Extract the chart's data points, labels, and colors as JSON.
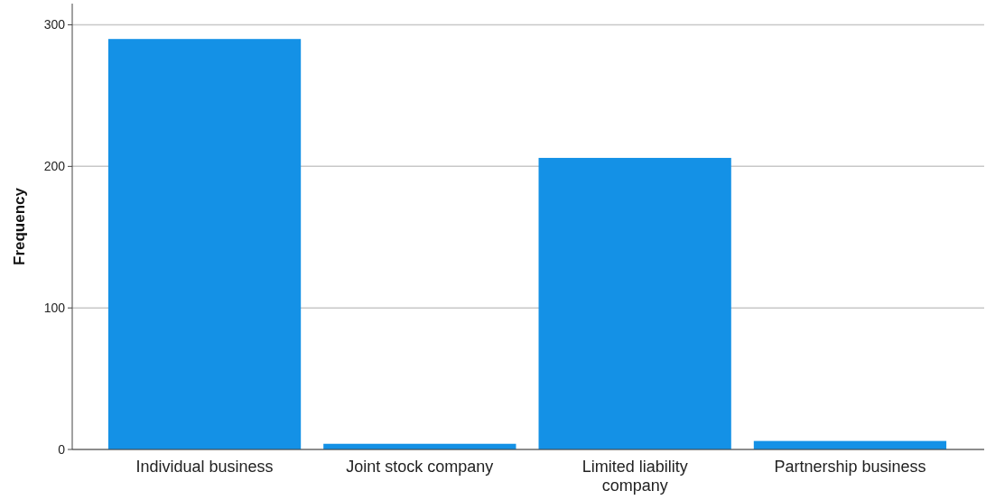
{
  "chart_data": {
    "type": "bar",
    "ylabel": "Frequency",
    "categories": [
      "Individual business",
      "Joint stock company",
      "Limited liability company",
      "Partnership business"
    ],
    "values": [
      290,
      4,
      206,
      6
    ],
    "color": "#1491e6",
    "ylim": [
      0,
      315
    ],
    "yticks": [
      0,
      100,
      200,
      300
    ],
    "grid": "y"
  }
}
